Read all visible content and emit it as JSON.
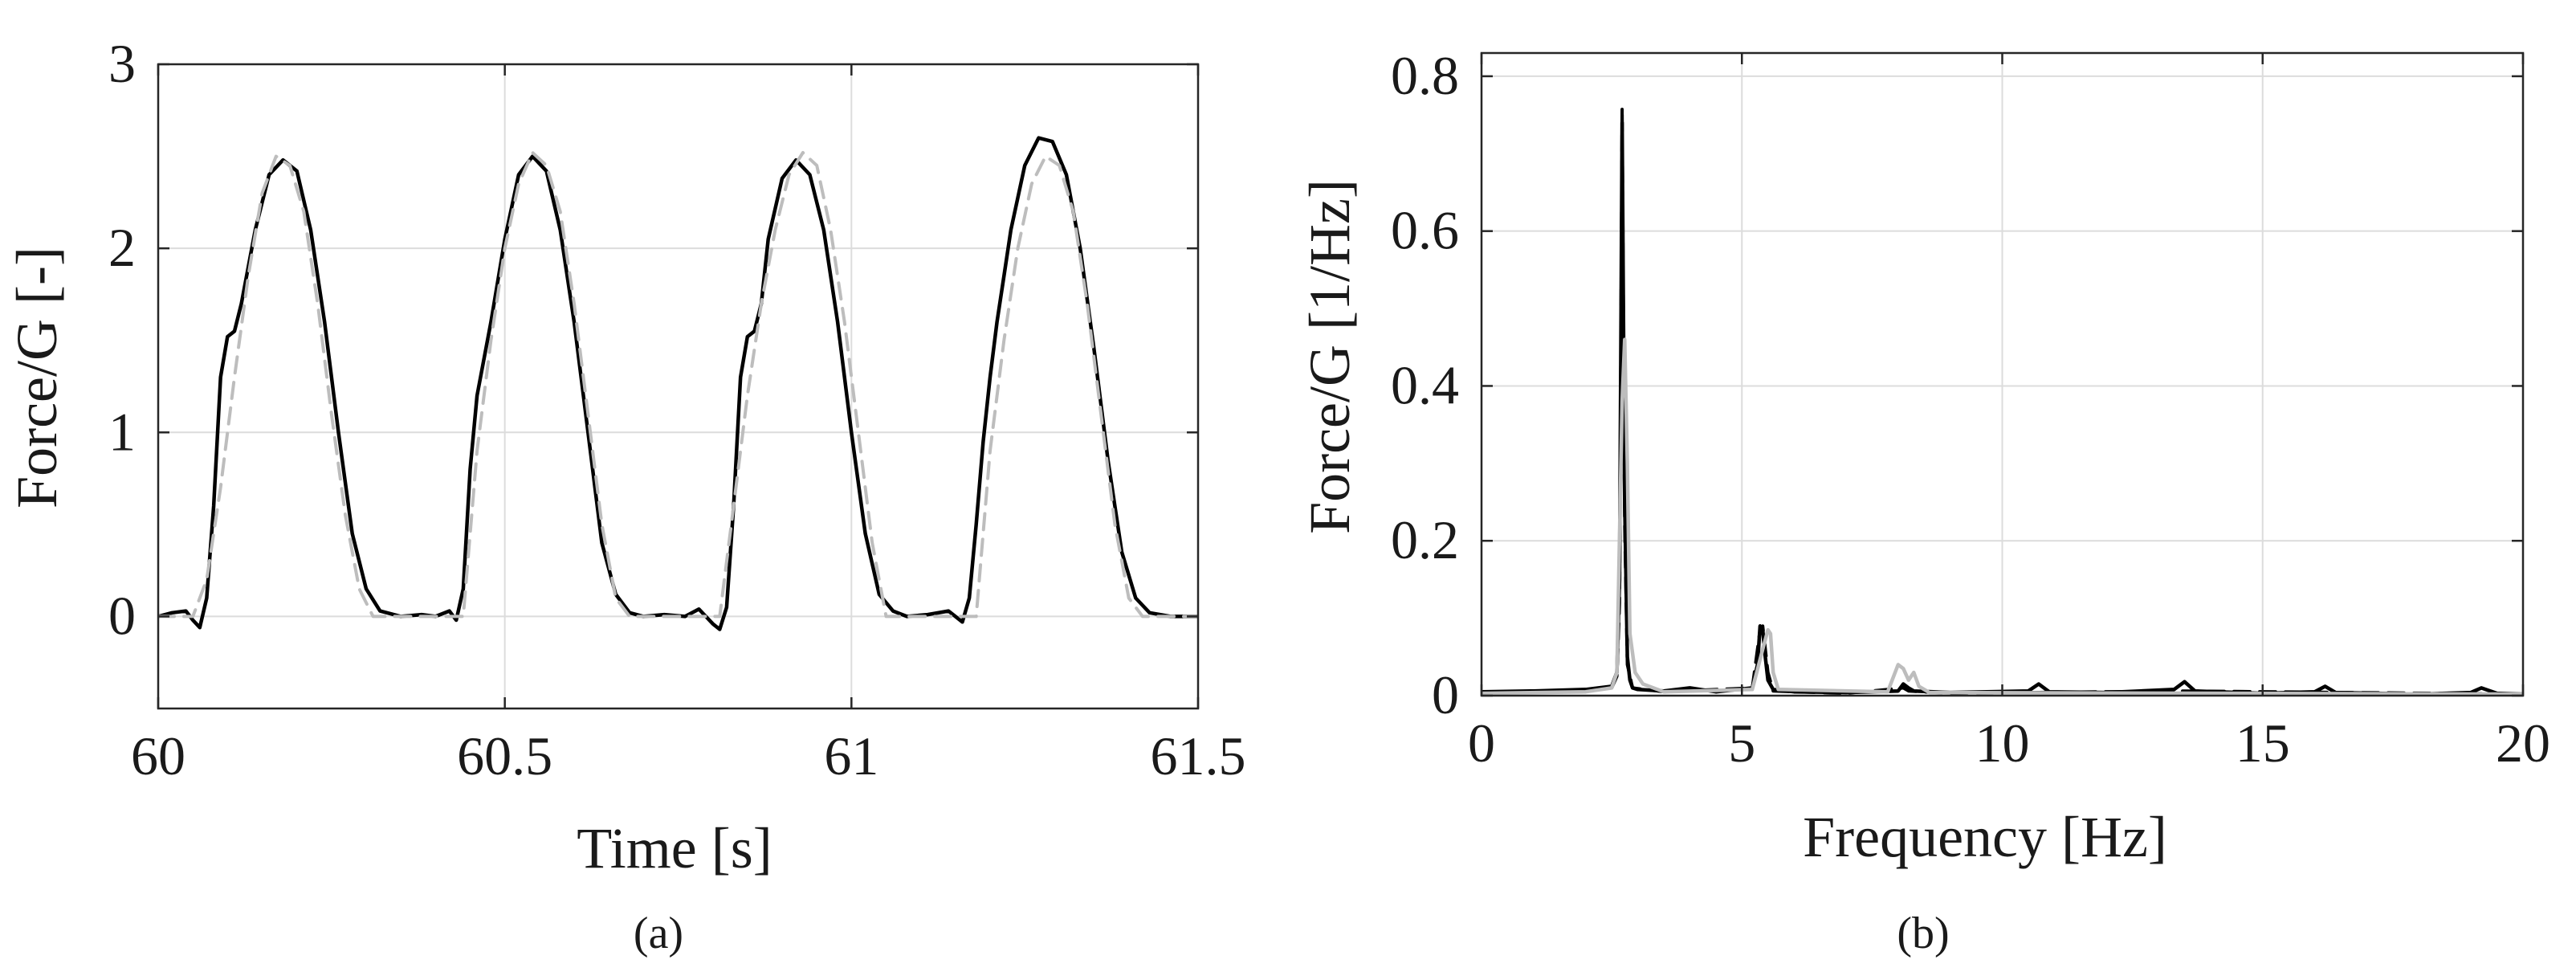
{
  "chart_data": [
    {
      "panel_label": "(a)",
      "type": "line",
      "xlabel": "Time [s]",
      "ylabel": "Force/G [-]",
      "xlim": [
        60,
        61.5
      ],
      "ylim": [
        -0.5,
        3
      ],
      "xticks": [
        60,
        60.5,
        61,
        61.5
      ],
      "xtick_labels": [
        "60",
        "60.5",
        "61",
        "61.5"
      ],
      "yticks": [
        0,
        1,
        2,
        3
      ],
      "ytick_labels": [
        "0",
        "1",
        "2",
        "3"
      ],
      "grid": true,
      "series": [
        {
          "style": "solid",
          "color": "#000000",
          "x": [
            60.0,
            60.02,
            60.04,
            60.05,
            60.06,
            60.07,
            60.08,
            60.09,
            60.1,
            60.11,
            60.12,
            60.14,
            60.16,
            60.18,
            60.2,
            60.22,
            60.24,
            60.26,
            60.28,
            60.3,
            60.32,
            60.35,
            60.38,
            60.4,
            60.42,
            60.43,
            60.44,
            60.45,
            60.46,
            60.48,
            60.5,
            60.52,
            60.54,
            60.56,
            60.58,
            60.6,
            60.62,
            60.64,
            60.66,
            60.68,
            60.7,
            60.73,
            60.76,
            60.78,
            60.8,
            60.81,
            60.82,
            60.83,
            60.84,
            60.85,
            60.86,
            60.87,
            60.88,
            60.9,
            60.92,
            60.94,
            60.96,
            60.98,
            61.0,
            61.02,
            61.04,
            61.06,
            61.08,
            61.11,
            61.14,
            61.16,
            61.17,
            61.18,
            61.19,
            61.2,
            61.21,
            61.22,
            61.23,
            61.25,
            61.27,
            61.29,
            61.31,
            61.33,
            61.35,
            61.37,
            61.39,
            61.41,
            61.43,
            61.46,
            61.5
          ],
          "y": [
            0.0,
            0.02,
            0.03,
            -0.02,
            -0.06,
            0.1,
            0.6,
            1.3,
            1.52,
            1.55,
            1.7,
            2.1,
            2.4,
            2.48,
            2.42,
            2.1,
            1.6,
            1.0,
            0.45,
            0.15,
            0.03,
            0.0,
            0.01,
            0.0,
            0.03,
            -0.02,
            0.15,
            0.8,
            1.2,
            1.6,
            2.05,
            2.4,
            2.5,
            2.42,
            2.1,
            1.6,
            1.0,
            0.4,
            0.12,
            0.02,
            0.0,
            0.01,
            0.0,
            0.04,
            -0.04,
            -0.07,
            0.05,
            0.6,
            1.3,
            1.52,
            1.55,
            1.7,
            2.05,
            2.38,
            2.48,
            2.4,
            2.1,
            1.6,
            1.0,
            0.45,
            0.12,
            0.03,
            0.0,
            0.01,
            0.03,
            -0.03,
            0.1,
            0.5,
            0.95,
            1.3,
            1.6,
            1.85,
            2.1,
            2.45,
            2.6,
            2.58,
            2.4,
            2.0,
            1.45,
            0.85,
            0.35,
            0.1,
            0.02,
            0.0,
            0.0
          ]
        },
        {
          "style": "dashed",
          "color": "#bdbdbd",
          "x": [
            60.0,
            60.05,
            60.07,
            60.09,
            60.11,
            60.13,
            60.15,
            60.17,
            60.19,
            60.21,
            60.23,
            60.25,
            60.27,
            60.29,
            60.31,
            60.44,
            60.46,
            60.48,
            60.5,
            60.52,
            60.54,
            60.56,
            60.58,
            60.6,
            60.62,
            60.64,
            60.66,
            60.68,
            60.81,
            60.83,
            60.85,
            60.87,
            60.89,
            60.91,
            60.93,
            60.95,
            60.97,
            60.99,
            61.01,
            61.03,
            61.05,
            61.18,
            61.2,
            61.22,
            61.24,
            61.26,
            61.28,
            61.3,
            61.32,
            61.34,
            61.36,
            61.38,
            61.4,
            61.42,
            61.5
          ],
          "y": [
            0.0,
            0.0,
            0.2,
            0.7,
            1.3,
            1.85,
            2.3,
            2.5,
            2.45,
            2.2,
            1.7,
            1.1,
            0.55,
            0.15,
            0.0,
            0.0,
            0.9,
            1.5,
            2.0,
            2.35,
            2.52,
            2.45,
            2.2,
            1.7,
            1.1,
            0.5,
            0.1,
            0.0,
            0.0,
            0.6,
            1.2,
            1.7,
            2.1,
            2.4,
            2.52,
            2.45,
            2.1,
            1.6,
            1.0,
            0.4,
            0.0,
            0.0,
            0.9,
            1.5,
            2.0,
            2.35,
            2.5,
            2.45,
            2.2,
            1.7,
            1.1,
            0.5,
            0.1,
            0.0,
            0.0
          ]
        }
      ]
    },
    {
      "panel_label": "(b)",
      "type": "line",
      "xlabel": "Frequency [Hz]",
      "ylabel": "Force/G [1/Hz]",
      "xlim": [
        0,
        20
      ],
      "ylim": [
        0,
        0.83
      ],
      "xticks": [
        0,
        5,
        10,
        15,
        20
      ],
      "xtick_labels": [
        "0",
        "5",
        "10",
        "15",
        "20"
      ],
      "yticks": [
        0,
        0.2,
        0.4,
        0.6,
        0.8
      ],
      "ytick_labels": [
        "0",
        "0.2",
        "0.4",
        "0.6",
        "0.8"
      ],
      "grid": true,
      "series": [
        {
          "style": "solid",
          "color": "#000000",
          "x": [
            0,
            1,
            2,
            2.5,
            2.6,
            2.65,
            2.7,
            2.75,
            2.8,
            2.85,
            2.9,
            3.0,
            3.5,
            4.0,
            4.5,
            5.2,
            5.3,
            5.35,
            5.4,
            5.45,
            5.5,
            5.6,
            6.0,
            7.0,
            8.0,
            8.1,
            8.2,
            8.3,
            9.0,
            10.5,
            10.7,
            10.9,
            12.0,
            13.3,
            13.5,
            13.7,
            15.0,
            16.0,
            16.2,
            16.4,
            18.0,
            19.0,
            19.2,
            19.5,
            20
          ],
          "y": [
            0.005,
            0.006,
            0.008,
            0.012,
            0.03,
            0.15,
            0.74,
            0.25,
            0.05,
            0.02,
            0.01,
            0.008,
            0.006,
            0.01,
            0.005,
            0.01,
            0.04,
            0.09,
            0.085,
            0.05,
            0.02,
            0.008,
            0.005,
            0.004,
            0.006,
            0.015,
            0.01,
            0.006,
            0.004,
            0.006,
            0.015,
            0.005,
            0.004,
            0.008,
            0.018,
            0.006,
            0.003,
            0.005,
            0.012,
            0.004,
            0.002,
            0.004,
            0.01,
            0.003,
            0.002
          ]
        },
        {
          "style": "dashed",
          "color": "#000000",
          "x": [
            0,
            1,
            2,
            2.5,
            2.6,
            2.65,
            2.7,
            2.75,
            2.8,
            2.9,
            3.5,
            5.2,
            5.35,
            5.4,
            5.5,
            5.6,
            7.0,
            8.1,
            8.2,
            9.0,
            13.5,
            20
          ],
          "y": [
            0.004,
            0.005,
            0.007,
            0.01,
            0.025,
            0.12,
            0.76,
            0.22,
            0.04,
            0.01,
            0.005,
            0.01,
            0.085,
            0.09,
            0.03,
            0.006,
            0.003,
            0.01,
            0.006,
            0.003,
            0.006,
            0.002
          ]
        },
        {
          "style": "solid",
          "color": "#bdbdbd",
          "x": [
            0,
            2,
            2.5,
            2.6,
            2.7,
            2.75,
            2.8,
            2.85,
            2.95,
            3.1,
            3.5,
            5.2,
            5.4,
            5.5,
            5.55,
            5.6,
            5.7,
            7.8,
            8.0,
            8.1,
            8.2,
            8.3,
            8.4,
            8.6,
            20
          ],
          "y": [
            0.003,
            0.005,
            0.01,
            0.03,
            0.38,
            0.46,
            0.3,
            0.08,
            0.03,
            0.015,
            0.005,
            0.008,
            0.06,
            0.085,
            0.08,
            0.03,
            0.008,
            0.005,
            0.04,
            0.035,
            0.02,
            0.03,
            0.012,
            0.004,
            0.002
          ]
        }
      ]
    }
  ]
}
